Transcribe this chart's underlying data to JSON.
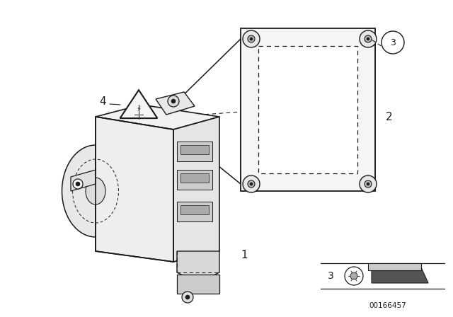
{
  "background_color": "#ffffff",
  "line_color": "#1a1a1a",
  "diagram_id": "00166457",
  "fig_w": 6.4,
  "fig_h": 4.48,
  "dpi": 100
}
